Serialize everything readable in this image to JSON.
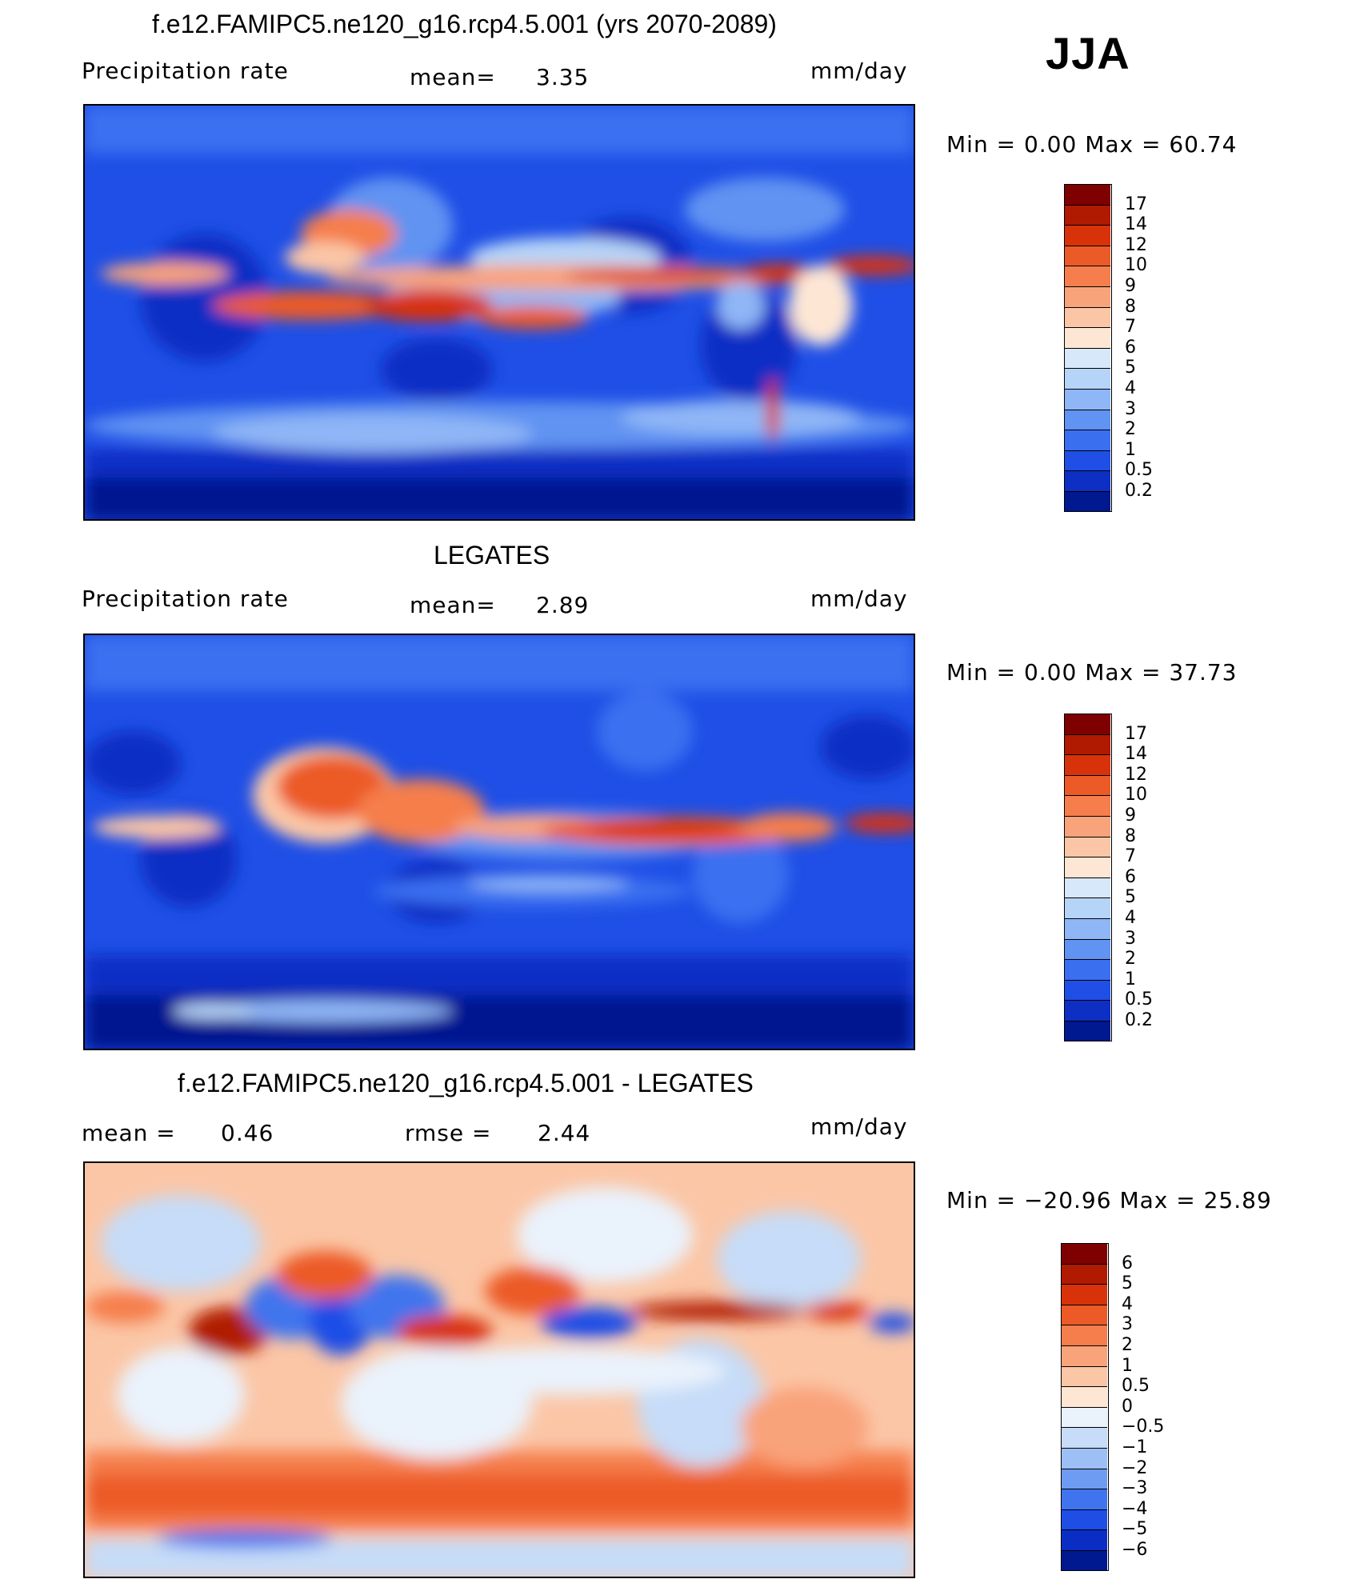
{
  "panels": [
    {
      "title": "f.e12.FAMIPC5.ne120_g16.rcp4.5.001 (yrs 2070-2089)",
      "left_label": "Precipitation  rate",
      "stat1_label": "mean=",
      "stat1_value": "3.35",
      "stat2_label": "",
      "stat2_value": "",
      "units": "mm/day",
      "minmax": "Min  =     0.00  Max  =    60.74",
      "colorbar": [
        "17",
        "14",
        "12",
        "10",
        "9",
        "8",
        "7",
        "6",
        "5",
        "4",
        "3",
        "2",
        "1",
        "0.5",
        "0.2"
      ],
      "colors": [
        "#7f0000",
        "#b01a00",
        "#d8320a",
        "#ec5a28",
        "#f57e4c",
        "#f9a37a",
        "#fbc6a6",
        "#fde6d4",
        "#d6e8fa",
        "#b6d4f8",
        "#8fb6f6",
        "#6093f2",
        "#3a6ff0",
        "#1f4fe6",
        "#0e2fc4",
        "#001890"
      ]
    },
    {
      "title": "LEGATES",
      "left_label": "Precipitation  rate",
      "stat1_label": "mean=",
      "stat1_value": "2.89",
      "stat2_label": "",
      "stat2_value": "",
      "units": "mm/day",
      "minmax": "Min  =     0.00  Max  =    37.73",
      "colorbar": [
        "17",
        "14",
        "12",
        "10",
        "9",
        "8",
        "7",
        "6",
        "5",
        "4",
        "3",
        "2",
        "1",
        "0.5",
        "0.2"
      ],
      "colors": [
        "#7f0000",
        "#b01a00",
        "#d8320a",
        "#ec5a28",
        "#f57e4c",
        "#f9a37a",
        "#fbc6a6",
        "#fde6d4",
        "#d6e8fa",
        "#b6d4f8",
        "#8fb6f6",
        "#6093f2",
        "#3a6ff0",
        "#1f4fe6",
        "#0e2fc4",
        "#001890"
      ]
    },
    {
      "title": "f.e12.FAMIPC5.ne120_g16.rcp4.5.001 - LEGATES",
      "left_label": "mean  =",
      "stat1_label": "0.46",
      "stat1_value": "",
      "stat2_label": "rmse  =",
      "stat2_value": "2.44",
      "units": "mm/day",
      "minmax": "Min  = −20.96  Max  =    25.89",
      "colorbar": [
        "6",
        "5",
        "4",
        "3",
        "2",
        "1",
        "0.5",
        "0",
        "−0.5",
        "−1",
        "−2",
        "−3",
        "−4",
        "−5",
        "−6"
      ],
      "colors": [
        "#7f0000",
        "#b01a00",
        "#d8320a",
        "#ec5a28",
        "#f57e4c",
        "#f9a37a",
        "#fbc6a6",
        "#fde6d4",
        "#eaf2fc",
        "#c6dcf8",
        "#9cc0f6",
        "#6e9cf2",
        "#3f74ee",
        "#1e4ee6",
        "#0a2ec4",
        "#001890"
      ]
    }
  ],
  "season": "JJA"
}
